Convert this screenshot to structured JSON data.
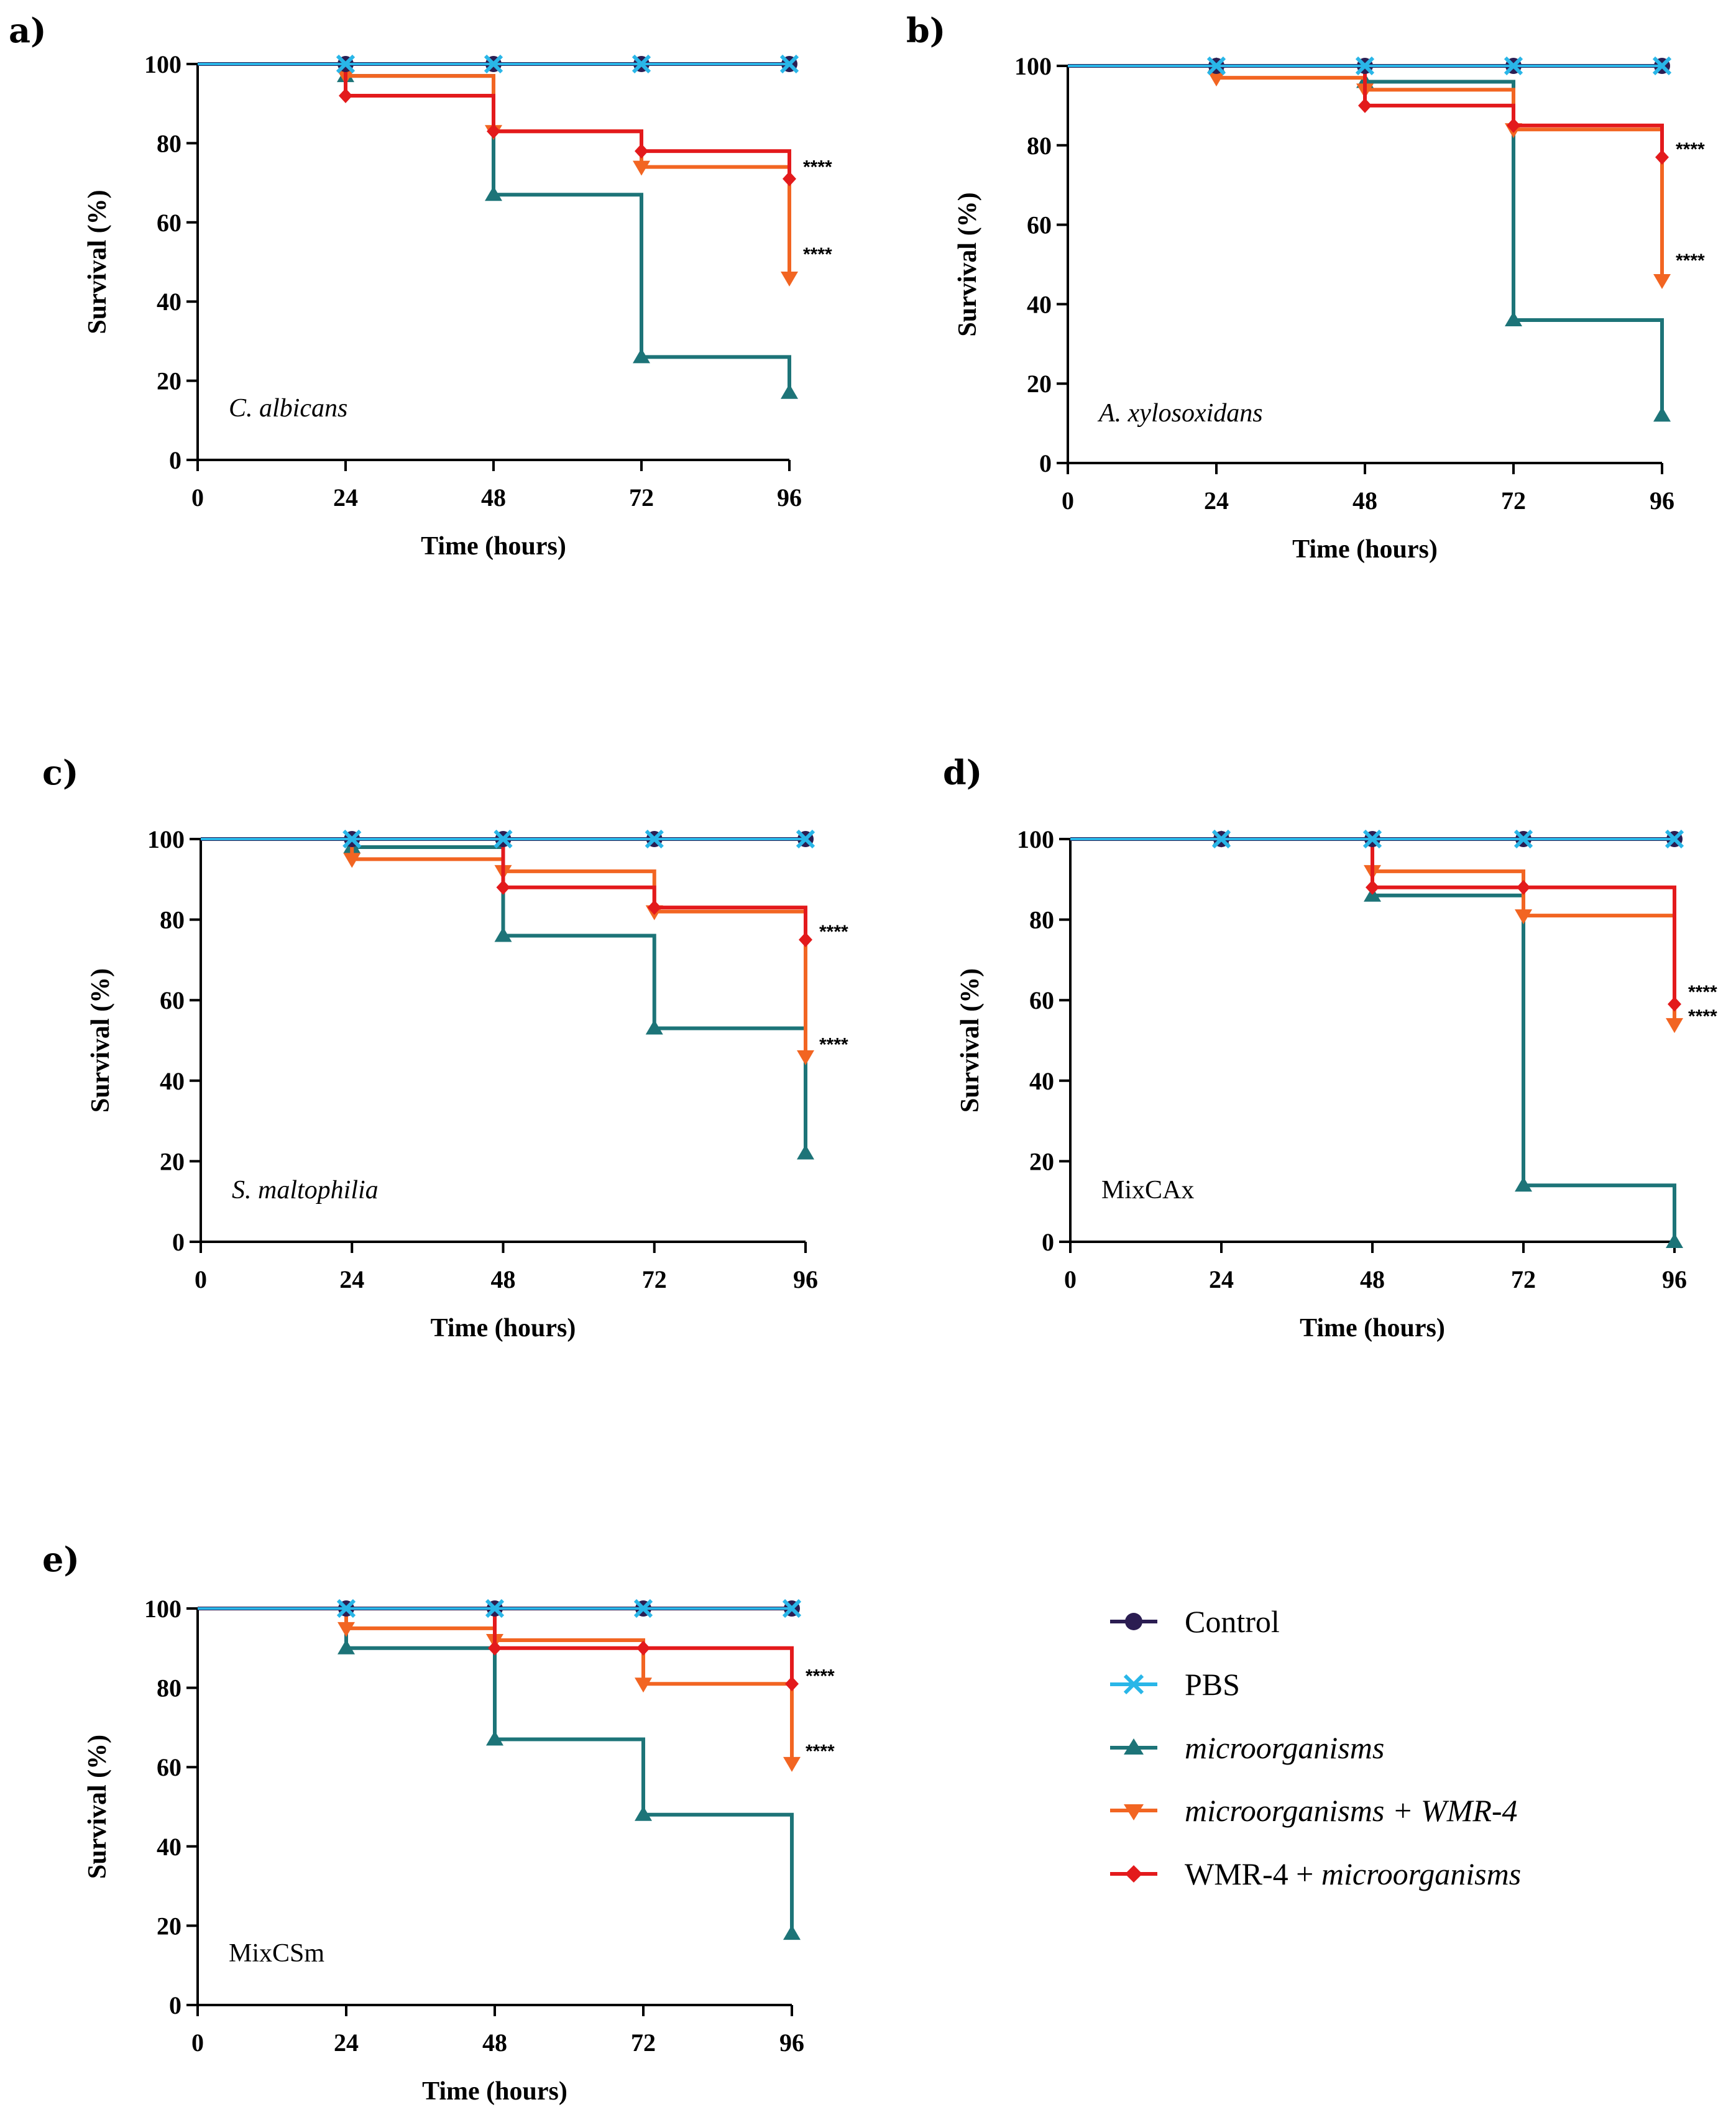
{
  "legend": [
    {
      "key": "control",
      "label": "Control",
      "italic": false
    },
    {
      "key": "pbs",
      "label": "PBS",
      "italic": false
    },
    {
      "key": "micro",
      "label": "microorganisms",
      "italic": true
    },
    {
      "key": "microWmr",
      "label": "microorganisms + WMR-4",
      "italic": true
    },
    {
      "key": "wmrMicro",
      "label_prefix": "WMR-4 + ",
      "label_suffix": "microorganisms",
      "italic": "partial"
    }
  ],
  "colors": {
    "control": "#2b1d52",
    "pbs": "#29b6e8",
    "micro": "#1d7478",
    "microWmr": "#f26522",
    "wmrMicro": "#e31a1c",
    "axis": "#000000"
  },
  "chart_data": [
    {
      "panel": "a)",
      "type": "line",
      "subtype": "kaplan-meier survival",
      "organism": "C. albicans",
      "organism_italic": true,
      "xlabel": "Time (hours)",
      "ylabel": "Survival (%)",
      "xlim": [
        0,
        96
      ],
      "ylim": [
        0,
        100
      ],
      "xticks": [
        0,
        24,
        48,
        72,
        96
      ],
      "yticks": [
        0,
        20,
        40,
        60,
        80,
        100
      ],
      "series": [
        {
          "key": "control",
          "name": "Control",
          "x": [
            0,
            24,
            48,
            72,
            96
          ],
          "y": [
            100,
            100,
            100,
            100,
            100
          ]
        },
        {
          "key": "pbs",
          "name": "PBS",
          "x": [
            0,
            24,
            48,
            72,
            96
          ],
          "y": [
            100,
            100,
            100,
            100,
            100
          ]
        },
        {
          "key": "micro",
          "name": "microorganisms",
          "x": [
            0,
            24,
            48,
            72,
            96
          ],
          "y": [
            100,
            97,
            67,
            26,
            17
          ]
        },
        {
          "key": "microWmr",
          "name": "microorganisms + WMR-4",
          "x": [
            0,
            24,
            48,
            72,
            96
          ],
          "y": [
            100,
            97,
            83,
            74,
            46
          ]
        },
        {
          "key": "wmrMicro",
          "name": "WMR-4 + microorganisms",
          "x": [
            0,
            24,
            48,
            72,
            96
          ],
          "y": [
            100,
            92,
            83,
            78,
            71
          ]
        }
      ],
      "significance": [
        {
          "text": "****",
          "series": "wmrMicro",
          "y": 74
        },
        {
          "text": "****",
          "series": "microWmr",
          "y": 52
        }
      ]
    },
    {
      "panel": "b)",
      "type": "line",
      "subtype": "kaplan-meier survival",
      "organism": "A. xylosoxidans",
      "organism_italic": true,
      "xlabel": "Time (hours)",
      "ylabel": "Survival (%)",
      "xlim": [
        0,
        96
      ],
      "ylim": [
        0,
        100
      ],
      "xticks": [
        0,
        24,
        48,
        72,
        96
      ],
      "yticks": [
        0,
        20,
        40,
        60,
        80,
        100
      ],
      "series": [
        {
          "key": "control",
          "name": "Control",
          "x": [
            0,
            24,
            48,
            72,
            96
          ],
          "y": [
            100,
            100,
            100,
            100,
            100
          ]
        },
        {
          "key": "pbs",
          "name": "PBS",
          "x": [
            0,
            24,
            48,
            72,
            96
          ],
          "y": [
            100,
            100,
            100,
            100,
            100
          ]
        },
        {
          "key": "micro",
          "name": "microorganisms",
          "x": [
            0,
            24,
            48,
            72,
            96
          ],
          "y": [
            100,
            100,
            96,
            36,
            12
          ]
        },
        {
          "key": "microWmr",
          "name": "microorganisms + WMR-4",
          "x": [
            0,
            24,
            48,
            72,
            96
          ],
          "y": [
            100,
            97,
            94,
            84,
            46
          ]
        },
        {
          "key": "wmrMicro",
          "name": "WMR-4 + microorganisms",
          "x": [
            0,
            24,
            48,
            72,
            96
          ],
          "y": [
            100,
            100,
            90,
            85,
            77
          ]
        }
      ],
      "significance": [
        {
          "text": "****",
          "series": "wmrMicro",
          "y": 79
        },
        {
          "text": "****",
          "series": "microWmr",
          "y": 51
        }
      ]
    },
    {
      "panel": "c)",
      "type": "line",
      "subtype": "kaplan-meier survival",
      "organism": "S. maltophilia",
      "organism_italic": true,
      "xlabel": "Time (hours)",
      "ylabel": "Survival (%)",
      "xlim": [
        0,
        96
      ],
      "ylim": [
        0,
        100
      ],
      "xticks": [
        0,
        24,
        48,
        72,
        96
      ],
      "yticks": [
        0,
        20,
        40,
        60,
        80,
        100
      ],
      "series": [
        {
          "key": "control",
          "name": "Control",
          "x": [
            0,
            24,
            48,
            72,
            96
          ],
          "y": [
            100,
            100,
            100,
            100,
            100
          ]
        },
        {
          "key": "pbs",
          "name": "PBS",
          "x": [
            0,
            24,
            48,
            72,
            96
          ],
          "y": [
            100,
            100,
            100,
            100,
            100
          ]
        },
        {
          "key": "micro",
          "name": "microorganisms",
          "x": [
            0,
            24,
            48,
            72,
            96
          ],
          "y": [
            100,
            98,
            76,
            53,
            22
          ]
        },
        {
          "key": "microWmr",
          "name": "microorganisms + WMR-4",
          "x": [
            0,
            24,
            48,
            72,
            96
          ],
          "y": [
            100,
            95,
            92,
            82,
            46
          ]
        },
        {
          "key": "wmrMicro",
          "name": "WMR-4 + microorganisms",
          "x": [
            0,
            24,
            48,
            72,
            96
          ],
          "y": [
            100,
            100,
            88,
            83,
            75
          ]
        }
      ],
      "significance": [
        {
          "text": "****",
          "series": "wmrMicro",
          "y": 77
        },
        {
          "text": "****",
          "series": "microWmr",
          "y": 49
        }
      ]
    },
    {
      "panel": "d)",
      "type": "line",
      "subtype": "kaplan-meier survival",
      "organism": "MixCAx",
      "organism_italic": false,
      "xlabel": "Time (hours)",
      "ylabel": "Survival (%)",
      "xlim": [
        0,
        96
      ],
      "ylim": [
        0,
        100
      ],
      "xticks": [
        0,
        24,
        48,
        72,
        96
      ],
      "yticks": [
        0,
        20,
        40,
        60,
        80,
        100
      ],
      "series": [
        {
          "key": "control",
          "name": "Control",
          "x": [
            0,
            24,
            48,
            72,
            96
          ],
          "y": [
            100,
            100,
            100,
            100,
            100
          ]
        },
        {
          "key": "pbs",
          "name": "PBS",
          "x": [
            0,
            24,
            48,
            72,
            96
          ],
          "y": [
            100,
            100,
            100,
            100,
            100
          ]
        },
        {
          "key": "micro",
          "name": "microorganisms",
          "x": [
            0,
            24,
            48,
            72,
            96
          ],
          "y": [
            100,
            100,
            86,
            14,
            0
          ]
        },
        {
          "key": "microWmr",
          "name": "microorganisms + WMR-4",
          "x": [
            0,
            24,
            48,
            72,
            96
          ],
          "y": [
            100,
            100,
            92,
            81,
            54
          ]
        },
        {
          "key": "wmrMicro",
          "name": "WMR-4 + microorganisms",
          "x": [
            0,
            24,
            48,
            72,
            96
          ],
          "y": [
            100,
            100,
            88,
            88,
            59
          ]
        }
      ],
      "significance": [
        {
          "text": "****",
          "series": "wmrMicro",
          "y": 62
        },
        {
          "text": "****",
          "series": "microWmr",
          "y": 56
        }
      ]
    },
    {
      "panel": "e)",
      "type": "line",
      "subtype": "kaplan-meier survival",
      "organism": "MixCSm",
      "organism_italic": false,
      "xlabel": "Time (hours)",
      "ylabel": "Survival (%)",
      "xlim": [
        0,
        96
      ],
      "ylim": [
        0,
        100
      ],
      "xticks": [
        0,
        24,
        48,
        72,
        96
      ],
      "yticks": [
        0,
        20,
        40,
        60,
        80,
        100
      ],
      "series": [
        {
          "key": "control",
          "name": "Control",
          "x": [
            0,
            24,
            48,
            72,
            96
          ],
          "y": [
            100,
            100,
            100,
            100,
            100
          ]
        },
        {
          "key": "pbs",
          "name": "PBS",
          "x": [
            0,
            24,
            48,
            72,
            96
          ],
          "y": [
            100,
            100,
            100,
            100,
            100
          ]
        },
        {
          "key": "micro",
          "name": "microorganisms",
          "x": [
            0,
            24,
            48,
            72,
            96
          ],
          "y": [
            100,
            90,
            67,
            48,
            18
          ]
        },
        {
          "key": "microWmr",
          "name": "microorganisms + WMR-4",
          "x": [
            0,
            24,
            48,
            72,
            96
          ],
          "y": [
            100,
            95,
            92,
            81,
            61
          ]
        },
        {
          "key": "wmrMicro",
          "name": "WMR-4 + microorganisms",
          "x": [
            0,
            24,
            48,
            72,
            96
          ],
          "y": [
            100,
            100,
            90,
            90,
            81
          ]
        }
      ],
      "significance": [
        {
          "text": "****",
          "series": "wmrMicro",
          "y": 83
        },
        {
          "text": "****",
          "series": "microWmr",
          "y": 64
        }
      ]
    }
  ]
}
